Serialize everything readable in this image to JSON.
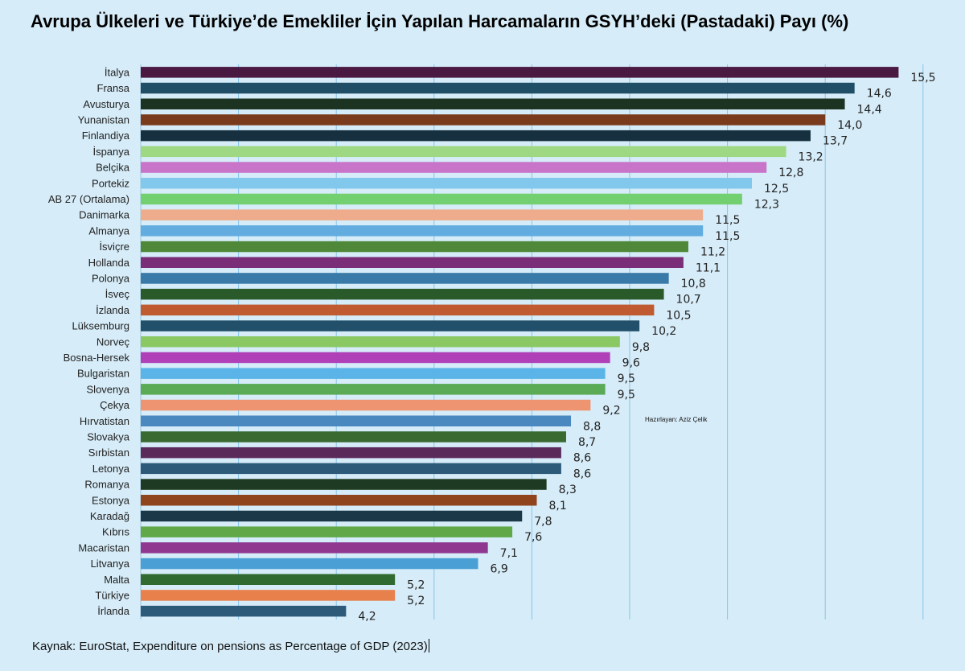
{
  "title": "Avrupa Ülkeleri ve Türkiye’de Emekliler İçin Yapılan Harcamaların GSYH’deki (Pastadaki) Payı (%)",
  "note": "Hazırlayan: Aziz Çelik",
  "source": "Kaynak: EuroStat, Expenditure on pensions as Percentage of GDP (2023)",
  "chart_data": {
    "type": "bar",
    "orientation": "horizontal",
    "title": "Avrupa Ülkeleri ve Türkiye’de Emekliler İçin Yapılan Harcamaların GSYH’deki (Pastadaki) Payı (%)",
    "xlim": [
      0,
      16
    ],
    "grid": true,
    "categories": [
      "İtalya",
      "Fransa",
      "Avusturya",
      "Yunanistan",
      "Finlandiya",
      "İspanya",
      "Belçika",
      "Portekiz",
      "AB 27 (Ortalama)",
      "Danimarka",
      "Almanya",
      "İsviçre",
      "Hollanda",
      "Polonya",
      "İsveç",
      "İzlanda",
      "Lüksemburg",
      "Norveç",
      "Bosna-Hersek",
      "Bulgaristan",
      "Slovenya",
      "Çekya",
      "Hırvatistan",
      "Slovakya",
      "Sırbistan",
      "Letonya",
      "Romanya",
      "Estonya",
      "Karadağ",
      "Kıbrıs",
      "Macaristan",
      "Litvanya",
      "Malta",
      "Türkiye",
      "İrlanda"
    ],
    "values": [
      15.5,
      14.6,
      14.4,
      14.0,
      13.7,
      13.2,
      12.8,
      12.5,
      12.3,
      11.5,
      11.5,
      11.2,
      11.1,
      10.8,
      10.7,
      10.5,
      10.2,
      9.8,
      9.6,
      9.5,
      9.5,
      9.2,
      8.8,
      8.7,
      8.6,
      8.6,
      8.3,
      8.1,
      7.8,
      7.6,
      7.1,
      6.9,
      5.2,
      5.2,
      4.2
    ],
    "value_labels": [
      "15,5",
      "14,6",
      "14,4",
      "14,0",
      "13,7",
      "13,2",
      "12,8",
      "12,5",
      "12,3",
      "11,5",
      "11,5",
      "11,2",
      "11,1",
      "10,8",
      "10,7",
      "10,5",
      "10,2",
      "9,8",
      "9,6",
      "9,5",
      "9,5",
      "9,2",
      "8,8",
      "8,7",
      "8,6",
      "8,6",
      "8,3",
      "8,1",
      "7,8",
      "7,6",
      "7,1",
      "6,9",
      "5,2",
      "5,2",
      "4,2"
    ],
    "colors": [
      "#4a1942",
      "#1f4e66",
      "#1b3320",
      "#7a3a1c",
      "#16303f",
      "#9ed882",
      "#c874c8",
      "#82c8ec",
      "#72d070",
      "#eeac8c",
      "#62ace0",
      "#4e8838",
      "#7a2e78",
      "#3a7aa8",
      "#2a5a2a",
      "#c05a30",
      "#22506a",
      "#8ac864",
      "#b040b8",
      "#5ab4e8",
      "#5aaa56",
      "#ee9470",
      "#4a88c0",
      "#3a6a30",
      "#5a2a5a",
      "#2c5a78",
      "#1e3a22",
      "#90441e",
      "#1a3848",
      "#60a848",
      "#903890",
      "#4aa0d4",
      "#306a30",
      "#e8804c",
      "#2e5a7a"
    ]
  }
}
